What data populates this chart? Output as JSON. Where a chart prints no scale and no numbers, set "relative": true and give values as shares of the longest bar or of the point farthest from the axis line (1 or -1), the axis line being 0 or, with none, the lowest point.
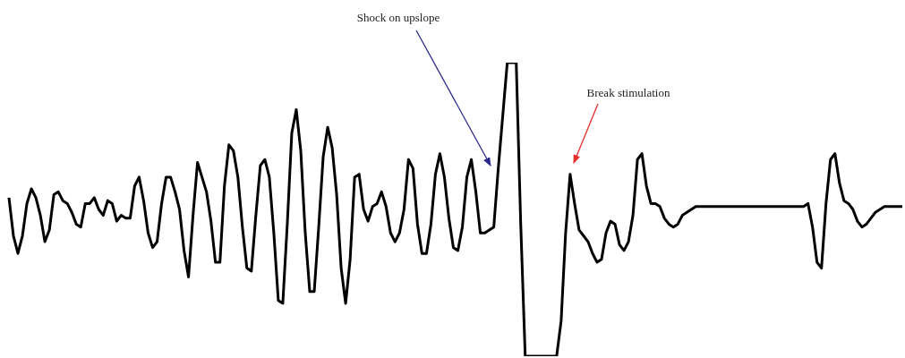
{
  "chart_data": {
    "type": "line",
    "relative": true,
    "categories": [
      null,
      null,
      null,
      null,
      null,
      null,
      null,
      null,
      null,
      null,
      null,
      null,
      null,
      null,
      null,
      null,
      null,
      null,
      null,
      null,
      null,
      null,
      null,
      null,
      null,
      null,
      null,
      null,
      null,
      null,
      null,
      null,
      null,
      null,
      null,
      null,
      null,
      null,
      null,
      null,
      null,
      null,
      null,
      null,
      null,
      null,
      null,
      null,
      null,
      null,
      null,
      null,
      null,
      null,
      null,
      null,
      null,
      null,
      null,
      null,
      null,
      null,
      null,
      null,
      null,
      null,
      null,
      null,
      null,
      null,
      null,
      null,
      null,
      null,
      null,
      null,
      null,
      null,
      null,
      null,
      null,
      null,
      null,
      null,
      null,
      null,
      null,
      null,
      null,
      null,
      null,
      null,
      null,
      null,
      null,
      null,
      null,
      null,
      null,
      null,
      null,
      null,
      null,
      null,
      null,
      null,
      null,
      null,
      null,
      null,
      null,
      null,
      null,
      null,
      null,
      null,
      null,
      null,
      null,
      null,
      null,
      null,
      null,
      null,
      null,
      null,
      null,
      null,
      null,
      null,
      null,
      null,
      null,
      null,
      null,
      null,
      null,
      null,
      null,
      null,
      null,
      null,
      null,
      null,
      null,
      null,
      null,
      null,
      null,
      null,
      null,
      null,
      null,
      null,
      null,
      null,
      null,
      null,
      null,
      null,
      null,
      null,
      null,
      null,
      null,
      null,
      null,
      null,
      null,
      null,
      null,
      null,
      null,
      null,
      null,
      null,
      null,
      null,
      null,
      null,
      null,
      null,
      null,
      null,
      null,
      null,
      null,
      null,
      null,
      null,
      null,
      null,
      null,
      null,
      null,
      null,
      null,
      null,
      null,
      null
    ],
    "series": [
      {
        "color": "#000000",
        "values": [
          0.54,
          0.41,
          0.35,
          0.41,
          0.52,
          0.57,
          0.54,
          0.48,
          0.39,
          0.43,
          0.55,
          0.56,
          0.53,
          0.52,
          0.49,
          0.45,
          0.44,
          0.52,
          0.52,
          0.54,
          0.5,
          0.48,
          0.53,
          0.52,
          0.46,
          0.48,
          0.47,
          0.47,
          0.58,
          0.61,
          0.53,
          0.42,
          0.37,
          0.39,
          0.52,
          0.61,
          0.61,
          0.56,
          0.5,
          0.36,
          0.27,
          0.48,
          0.66,
          0.61,
          0.56,
          0.46,
          0.32,
          0.32,
          0.58,
          0.72,
          0.7,
          0.61,
          0.44,
          0.3,
          0.29,
          0.48,
          0.65,
          0.67,
          0.61,
          0.42,
          0.19,
          0.18,
          0.45,
          0.76,
          0.84,
          0.7,
          0.42,
          0.22,
          0.22,
          0.44,
          0.68,
          0.78,
          0.71,
          0.55,
          0.3,
          0.18,
          0.33,
          0.61,
          0.62,
          0.5,
          0.46,
          0.51,
          0.52,
          0.56,
          0.51,
          0.42,
          0.39,
          0.42,
          0.5,
          0.67,
          0.64,
          0.45,
          0.35,
          0.35,
          0.45,
          0.62,
          0.69,
          0.61,
          0.47,
          0.37,
          0.36,
          0.44,
          0.61,
          0.67,
          0.56,
          0.42,
          0.42,
          0.43,
          0.44,
          0.64,
          0.82,
          1,
          1,
          1,
          0.45,
          0,
          0,
          0,
          0,
          0,
          0,
          0,
          0,
          0.12,
          0.42,
          0.62,
          0.52,
          0.43,
          0.41,
          0.39,
          0.35,
          0.32,
          0.33,
          0.42,
          0.46,
          0.45,
          0.38,
          0.36,
          0.39,
          0.48,
          0.67,
          0.69,
          0.58,
          0.52,
          0.52,
          0.51,
          0.47,
          0.45,
          0.44,
          0.45,
          0.48,
          0.49,
          0.5,
          0.51,
          0.51,
          0.51,
          0.51,
          0.51,
          0.51,
          0.51,
          0.51,
          0.51,
          0.51,
          0.51,
          0.51,
          0.51,
          0.51,
          0.51,
          0.51,
          0.51,
          0.51,
          0.51,
          0.51,
          0.51,
          0.51,
          0.51,
          0.51,
          0.51,
          0.52,
          0.44,
          0.32,
          0.3,
          0.52,
          0.67,
          0.69,
          0.59,
          0.53,
          0.52,
          0.5,
          0.46,
          0.44,
          0.45,
          0.47,
          0.49,
          0.5,
          0.51,
          0.51,
          0.51,
          0.51,
          0.51
        ]
      }
    ],
    "annotations": [
      "Shock on upslope",
      "Break stimulation"
    ]
  }
}
